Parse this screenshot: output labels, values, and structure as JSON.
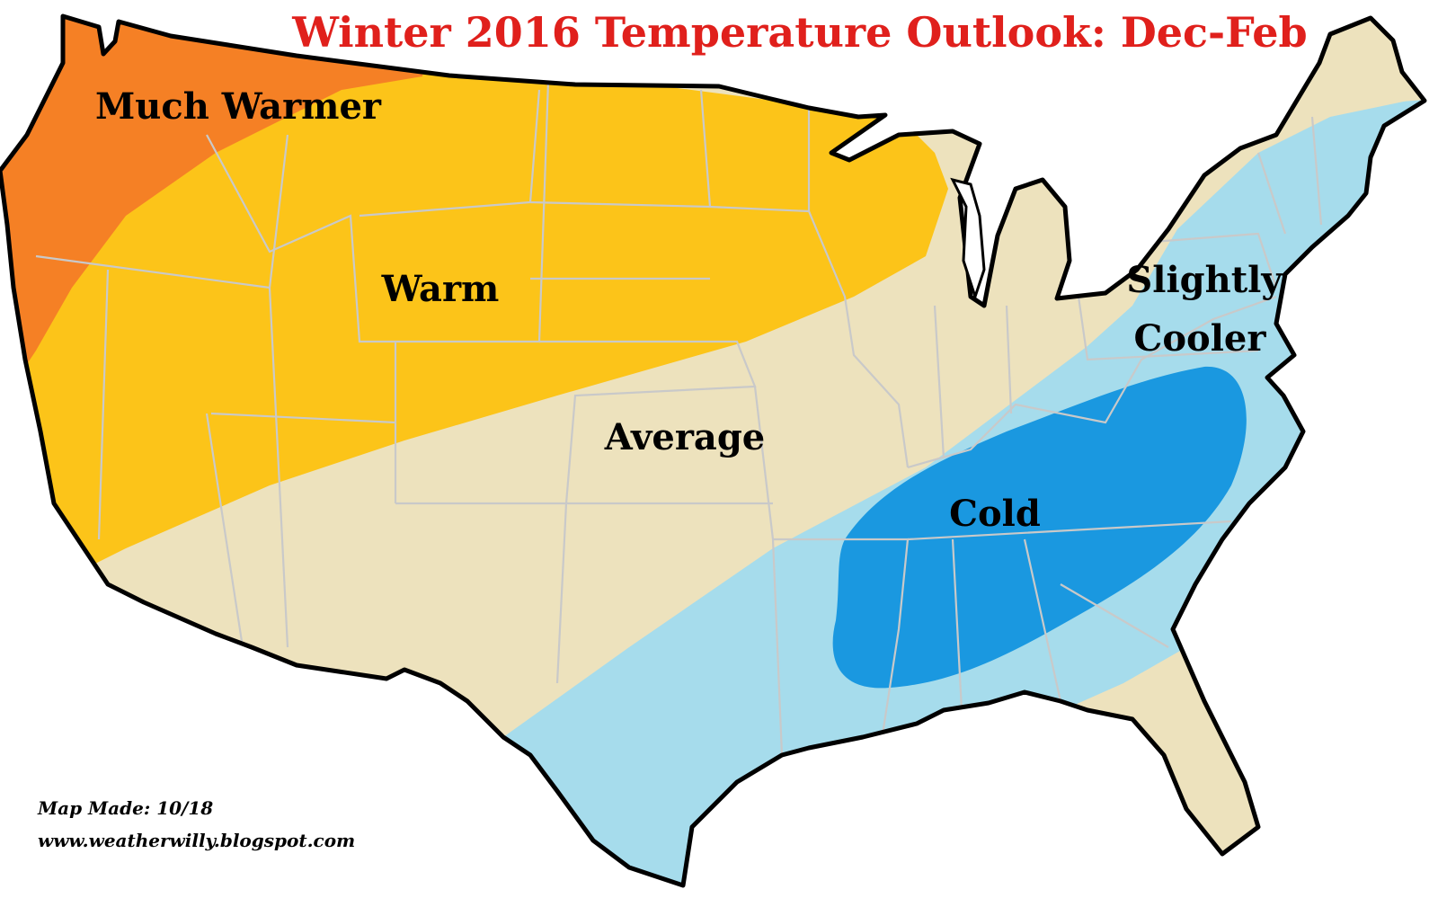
{
  "title": "Winter 2016 Temperature Outlook: Dec-Feb",
  "colors": {
    "title": "#e0201c",
    "much_warmer": "#f58025",
    "warm": "#fcc419",
    "average": "#ede2bd",
    "slightly_cooler": "#a6dcec",
    "cold": "#1a98e0",
    "outline": "#000000",
    "state_border": "#c9c9c9"
  },
  "regions": {
    "much_warmer": "Much Warmer",
    "warm": "Warm",
    "average": "Average",
    "slightly_cooler_line1": "Slightly",
    "slightly_cooler_line2": "Cooler",
    "cold": "Cold"
  },
  "credits": {
    "made": "Map Made: 10/18",
    "site": "www.weatherwilly.blogspot.com"
  }
}
